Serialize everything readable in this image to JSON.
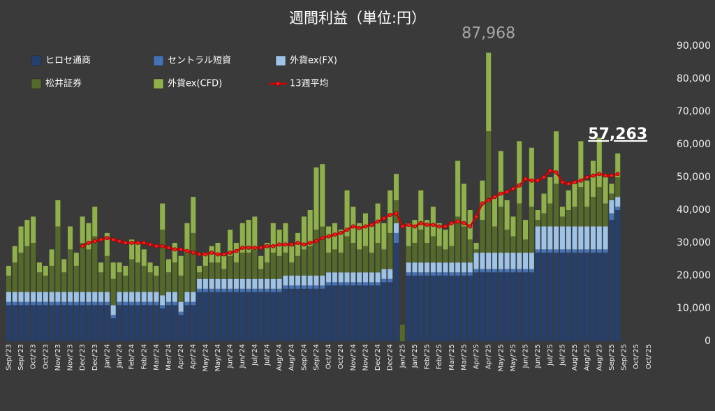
{
  "chart_data": {
    "type": "bar",
    "stacked": true,
    "title": "週間利益（単位:円）",
    "categories": [
      "Sep/'23",
      null,
      "Sep/'23",
      null,
      "Oct/'23",
      null,
      "Oct/'23",
      null,
      "Nov/'23",
      null,
      "Nov/'23",
      null,
      "Dec/'23",
      null,
      "Dec/'23",
      null,
      "Jan/'24",
      null,
      "Jan/'24",
      null,
      "Feb/'24",
      null,
      "Feb/'24",
      null,
      "Mar/'24",
      null,
      "Mar/'24",
      null,
      "Apr/'24",
      null,
      "Apr/'24",
      null,
      "May/'24",
      null,
      "May/'24",
      null,
      "Jun/'24",
      null,
      "Jun/'24",
      null,
      "Jul/'24",
      null,
      "Jul/'24",
      null,
      "Aug/'24",
      null,
      "Aug/'24",
      null,
      "Sep/'24",
      null,
      "Sep/'24",
      null,
      "Oct/'24",
      null,
      "Oct/'24",
      null,
      "Nov/'24",
      null,
      "Nov/'24",
      null,
      "Dec/'24",
      null,
      "Dec/'24",
      null,
      "Jan/'25",
      null,
      "Jan/'25",
      null,
      "Feb/'25",
      null,
      "Feb/'25",
      null,
      "Mar/'25",
      null,
      "Mar/'25",
      null,
      "Apr/'25",
      null,
      "Apr/'25",
      null,
      "May/'25",
      null,
      "May/'25",
      null,
      "Jun/'25",
      null,
      "Jun/'25",
      null,
      "Jul/'25",
      null,
      "Jul/'25",
      null,
      "Aug/'25",
      null,
      "Aug/'25",
      null,
      "Aug/'25",
      null,
      "Sep/'25",
      null,
      "Sep/'25",
      null,
      "Oct/'25",
      null,
      "Oct/'25",
      null
    ],
    "series": [
      {
        "name": "ヒロセ通商",
        "color": "#26406e",
        "values": [
          11000,
          11000,
          11000,
          11000,
          11000,
          11000,
          11000,
          11000,
          11000,
          11000,
          11000,
          11000,
          11000,
          11000,
          11000,
          11000,
          11000,
          7000,
          11000,
          11000,
          11000,
          11000,
          11000,
          11000,
          11000,
          10000,
          11000,
          11000,
          8000,
          11000,
          11000,
          15000,
          15000,
          15000,
          15000,
          15000,
          15000,
          15000,
          15000,
          15000,
          15000,
          15000,
          15000,
          15000,
          15000,
          16000,
          16000,
          16000,
          16000,
          16000,
          16000,
          16000,
          17000,
          17000,
          17000,
          17000,
          17000,
          17000,
          17000,
          17000,
          17000,
          18000,
          18000,
          30000,
          0,
          20000,
          20000,
          20000,
          20000,
          20000,
          20000,
          20000,
          20000,
          20000,
          20000,
          20000,
          21000,
          21000,
          21000,
          21000,
          21000,
          21000,
          21000,
          21000,
          21000,
          21000,
          27000,
          27000,
          27000,
          27000,
          27000,
          27000,
          27000,
          27000,
          27000,
          27000,
          27000,
          27000,
          37000,
          40000,
          null,
          null,
          null,
          null,
          null,
          null
        ]
      },
      {
        "name": "セントラル短資",
        "color": "#4472b4",
        "values": [
          1000,
          1000,
          1000,
          1000,
          1000,
          1000,
          1000,
          1000,
          1000,
          1000,
          1000,
          1000,
          1000,
          1000,
          1000,
          1000,
          1000,
          1000,
          1000,
          1000,
          1000,
          1000,
          1000,
          1000,
          1000,
          1000,
          1000,
          1000,
          1000,
          1000,
          1000,
          1000,
          1000,
          1000,
          1000,
          1000,
          1000,
          1000,
          1000,
          1000,
          1000,
          1000,
          1000,
          1000,
          1000,
          1000,
          1000,
          1000,
          1000,
          1000,
          1000,
          1000,
          1000,
          1000,
          1000,
          1000,
          1000,
          1000,
          1000,
          1000,
          1000,
          1000,
          1000,
          3000,
          0,
          1000,
          1000,
          1000,
          1000,
          1000,
          1000,
          1000,
          1000,
          1000,
          1000,
          1000,
          1000,
          1000,
          1000,
          1000,
          1000,
          1000,
          1000,
          1000,
          1000,
          1000,
          1000,
          1000,
          1000,
          1000,
          1000,
          1000,
          1000,
          1000,
          1000,
          1000,
          1000,
          1000,
          2000,
          1000,
          null,
          null,
          null,
          null,
          null,
          null
        ]
      },
      {
        "name": "外貨ex(FX)",
        "color": "#9dc3e6",
        "values": [
          3000,
          3000,
          3000,
          3000,
          3000,
          3000,
          3000,
          3000,
          3000,
          3000,
          3000,
          3000,
          3000,
          3000,
          3000,
          3000,
          3000,
          3000,
          3000,
          3000,
          3000,
          3000,
          3000,
          3000,
          3000,
          3000,
          3000,
          3000,
          3000,
          3000,
          3000,
          3000,
          3000,
          3000,
          3000,
          3000,
          3000,
          3000,
          3000,
          3000,
          3000,
          3000,
          3000,
          3000,
          3000,
          3000,
          3000,
          3000,
          3000,
          3000,
          3000,
          3000,
          3000,
          3000,
          3000,
          3000,
          3000,
          3000,
          3000,
          3000,
          3000,
          3000,
          3000,
          3000,
          0,
          3000,
          3000,
          3000,
          3000,
          3000,
          3000,
          3000,
          3000,
          3000,
          3000,
          3000,
          5000,
          5000,
          5000,
          5000,
          5000,
          5000,
          5000,
          5000,
          5000,
          5000,
          7000,
          7000,
          7000,
          7000,
          7000,
          7000,
          7000,
          7000,
          7000,
          7000,
          7000,
          7000,
          4000,
          3000,
          null,
          null,
          null,
          null,
          null,
          null
        ]
      },
      {
        "name": "松井証券",
        "color": "#55692a",
        "values": [
          5000,
          9000,
          12000,
          14000,
          15000,
          6000,
          5000,
          8000,
          20000,
          6000,
          13000,
          8000,
          15000,
          13000,
          17000,
          6000,
          11000,
          8000,
          6000,
          5000,
          10000,
          9000,
          8000,
          6000,
          5000,
          20000,
          6000,
          9000,
          8000,
          12000,
          18000,
          2000,
          4000,
          5000,
          5000,
          3000,
          7000,
          5000,
          8000,
          8000,
          9000,
          3000,
          5000,
          8000,
          7000,
          7000,
          4000,
          6000,
          8000,
          9000,
          14000,
          15000,
          6000,
          7000,
          6000,
          11000,
          9000,
          7000,
          8000,
          6000,
          9000,
          6000,
          11000,
          7000,
          5000,
          5000,
          6000,
          10000,
          6000,
          8000,
          5000,
          4000,
          5000,
          14000,
          11000,
          7000,
          1000,
          10000,
          37000,
          8000,
          14000,
          7000,
          5000,
          15000,
          4000,
          14000,
          2000,
          4000,
          7000,
          13000,
          3000,
          5000,
          6000,
          12000,
          6000,
          9000,
          12000,
          7000,
          2000,
          6000,
          null,
          null,
          null,
          null,
          null,
          null
        ]
      },
      {
        "name": "外貨ex(CFD)",
        "color": "#8fb04a",
        "values": [
          3000,
          5000,
          8000,
          8000,
          8000,
          3000,
          3000,
          5000,
          8000,
          4000,
          7000,
          4000,
          8000,
          8000,
          9000,
          3000,
          7000,
          5000,
          3000,
          3000,
          6000,
          6000,
          5000,
          3000,
          3000,
          8000,
          4000,
          6000,
          6000,
          9000,
          11000,
          2000,
          4000,
          5000,
          6000,
          4000,
          8000,
          6000,
          9000,
          10000,
          10000,
          4000,
          6000,
          9000,
          8000,
          9000,
          5000,
          7000,
          10000,
          11000,
          19000,
          19000,
          8000,
          8000,
          7000,
          14000,
          11000,
          8000,
          10000,
          8000,
          12000,
          8000,
          13000,
          8000,
          0,
          7000,
          7000,
          12000,
          7000,
          9000,
          7000,
          6000,
          7000,
          17000,
          13000,
          9000,
          2000,
          12000,
          23968,
          9000,
          17000,
          9000,
          6000,
          19000,
          6000,
          18000,
          3000,
          6000,
          8000,
          16000,
          3000,
          6000,
          7000,
          14000,
          8000,
          11000,
          15000,
          8000,
          3000,
          7263,
          null,
          null,
          null,
          null,
          null,
          null
        ]
      },
      {
        "name": "13週平均",
        "type": "line",
        "color": "#d40000",
        "values": [
          null,
          null,
          null,
          null,
          null,
          null,
          null,
          null,
          null,
          null,
          null,
          null,
          29000,
          30000,
          30500,
          31000,
          31500,
          31000,
          30500,
          30000,
          30000,
          30000,
          30000,
          29500,
          29000,
          29000,
          28500,
          28000,
          28000,
          27500,
          27000,
          26500,
          26500,
          27000,
          26500,
          26500,
          27000,
          27500,
          28500,
          28500,
          28500,
          28500,
          29000,
          29000,
          29500,
          29500,
          29500,
          30000,
          29500,
          30000,
          30500,
          31500,
          32000,
          32500,
          33000,
          34000,
          35000,
          34500,
          35000,
          35500,
          36500,
          37500,
          38500,
          39000,
          35000,
          35500,
          35000,
          36000,
          35500,
          35500,
          35000,
          35000,
          36000,
          36500,
          36000,
          35000,
          38000,
          42000,
          43000,
          44000,
          45000,
          45500,
          46500,
          47500,
          49500,
          49000,
          49000,
          50000,
          52000,
          51500,
          48500,
          48000,
          48500,
          49000,
          50000,
          50500,
          51000,
          50500,
          50500,
          51000,
          null,
          null,
          null,
          null,
          null,
          null
        ]
      }
    ],
    "annotations": [
      {
        "label": "87,968",
        "value": 87968,
        "index": 78
      },
      {
        "label": "57,263",
        "value": 57263,
        "index": 99
      }
    ],
    "ylim": [
      0,
      90000
    ],
    "yticks": [
      0,
      {
        "value": 10000,
        "label": "10,000"
      },
      {
        "value": 20000,
        "label": "20,000"
      },
      {
        "value": 30000,
        "label": "30,000"
      },
      {
        "value": 40000,
        "label": "40,000"
      },
      {
        "value": 50000,
        "label": "50,000"
      },
      {
        "value": 60000,
        "label": "60,000"
      },
      {
        "value": 70000,
        "label": "70,000"
      },
      {
        "value": 80000,
        "label": "80,000"
      },
      {
        "value": 90000,
        "label": "90,000"
      }
    ],
    "grid": false
  }
}
